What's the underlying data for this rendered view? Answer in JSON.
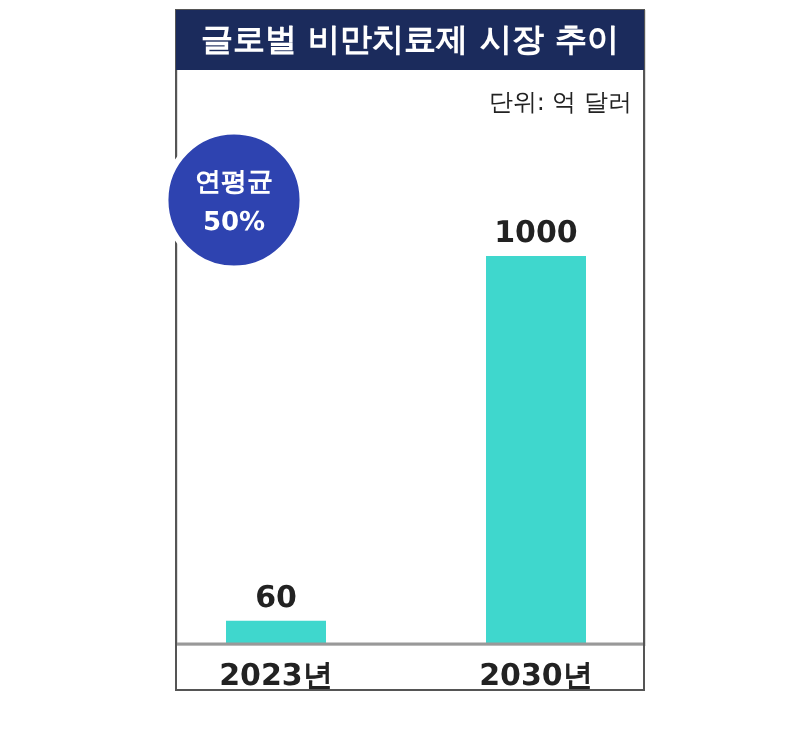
{
  "chart_data": {
    "type": "bar",
    "title": "글로벌 비만치료제 시장 추이",
    "subtitle": "단위: 억 달러",
    "categories": [
      "2023년",
      "2030년"
    ],
    "values": [
      60,
      1000
    ],
    "color": "#3fd7cd",
    "data_labels": true,
    "annotations": [
      "연평균 50%"
    ]
  }
}
